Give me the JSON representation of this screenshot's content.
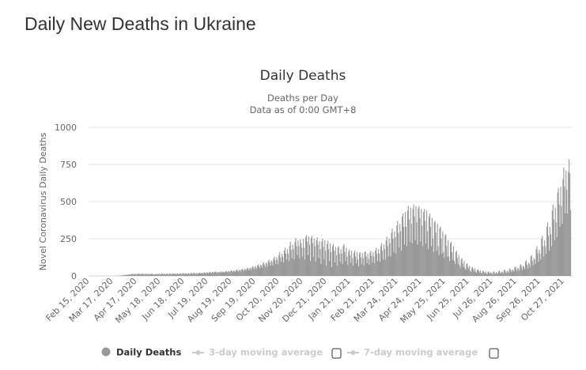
{
  "page": {
    "title": "Daily New Deaths in Ukraine"
  },
  "chart_data": {
    "type": "bar",
    "title": "Daily Deaths",
    "subtitle": [
      "Deaths per Day",
      "Data as of 0:00 GMT+8"
    ],
    "ylabel": "Novel Coronavirus Daily Deaths",
    "xlabel": "",
    "ylim": [
      0,
      1000
    ],
    "yticks": [
      "0",
      "250",
      "500",
      "750",
      "1000"
    ],
    "grid": true,
    "legend_placement": "bottom",
    "color": "#999999",
    "first_date": "2020-02-15",
    "xticks": [
      "Feb 15, 2020",
      "Mar 17, 2020",
      "Apr 17, 2020",
      "May 18, 2020",
      "Jun 18, 2020",
      "Jul 19, 2020",
      "Aug 19, 2020",
      "Sep 19, 2020",
      "Oct 20, 2020",
      "Nov 20, 2020",
      "Dec 21, 2020",
      "Jan 21, 2021",
      "Feb 21, 2021",
      "Mar 24, 2021",
      "Apr 24, 2021",
      "May 25, 2021",
      "Jun 25, 2021",
      "Jul 26, 2021",
      "Aug 26, 2021",
      "Sep 26, 2021",
      "Oct 27, 2021"
    ],
    "legend": [
      {
        "label": "Daily Deaths",
        "active": true,
        "color": "#999999"
      },
      {
        "label": "3-day moving average",
        "active": false,
        "color": "#cccccc"
      },
      {
        "label": "7-day moving average",
        "active": false,
        "color": "#cccccc"
      }
    ],
    "values": [
      0,
      0,
      0,
      0,
      0,
      0,
      0,
      0,
      0,
      0,
      0,
      0,
      0,
      0,
      0,
      0,
      0,
      0,
      0,
      0,
      0,
      0,
      0,
      0,
      0,
      0,
      0,
      0,
      0,
      0,
      0,
      0,
      1,
      0,
      1,
      0,
      1,
      2,
      0,
      3,
      2,
      4,
      3,
      5,
      4,
      6,
      8,
      5,
      7,
      9,
      7,
      10,
      12,
      8,
      11,
      14,
      13,
      10,
      12,
      15,
      11,
      9,
      14,
      12,
      16,
      13,
      10,
      14,
      11,
      17,
      13,
      9,
      12,
      15,
      14,
      10,
      13,
      11,
      14,
      9,
      12,
      16,
      13,
      10,
      8,
      12,
      14,
      11,
      15,
      9,
      13,
      14,
      10,
      12,
      17,
      13,
      11,
      15,
      12,
      9,
      14,
      16,
      12,
      10,
      18,
      15,
      11,
      13,
      17,
      14,
      12,
      16,
      13,
      10,
      15,
      18,
      14,
      11,
      19,
      16,
      12,
      14,
      20,
      17,
      13,
      18,
      15,
      11,
      16,
      19,
      13,
      12,
      21,
      18,
      14,
      17,
      22,
      16,
      13,
      20,
      17,
      12,
      19,
      23,
      18,
      14,
      22,
      20,
      15,
      21,
      25,
      19,
      16,
      24,
      22,
      17,
      24,
      28,
      21,
      18,
      27,
      25,
      19,
      27,
      30,
      24,
      20,
      29,
      26,
      20,
      28,
      31,
      25,
      21,
      30,
      27,
      22,
      30,
      34,
      28,
      23,
      33,
      30,
      24,
      33,
      38,
      31,
      26,
      37,
      34,
      27,
      38,
      42,
      35,
      29,
      41,
      38,
      30,
      43,
      48,
      40,
      33,
      47,
      44,
      35,
      50,
      56,
      46,
      38,
      55,
      52,
      40,
      60,
      66,
      55,
      45,
      65,
      60,
      48,
      70,
      78,
      64,
      52,
      76,
      70,
      55,
      82,
      92,
      75,
      60,
      90,
      82,
      62,
      98,
      110,
      90,
      70,
      105,
      95,
      70,
      115,
      130,
      105,
      80,
      125,
      110,
      80,
      140,
      160,
      125,
      95,
      150,
      130,
      90,
      170,
      190,
      150,
      110,
      180,
      150,
      100,
      200,
      230,
      175,
      120,
      210,
      180,
      110,
      230,
      255,
      200,
      140,
      240,
      200,
      120,
      245,
      220,
      190,
      130,
      250,
      190,
      110,
      260,
      275,
      230,
      140,
      265,
      210,
      100,
      255,
      270,
      220,
      130,
      250,
      200,
      95,
      240,
      260,
      210,
      120,
      235,
      180,
      80,
      230,
      250,
      195,
      110,
      240,
      170,
      70,
      215,
      235,
      180,
      100,
      220,
      160,
      60,
      200,
      215,
      170,
      90,
      195,
      140,
      70,
      190,
      200,
      150,
      95,
      180,
      150,
      80,
      200,
      215,
      160,
      100,
      190,
      130,
      75,
      165,
      180,
      140,
      90,
      170,
      120,
      70,
      155,
      170,
      130,
      85,
      160,
      110,
      65,
      150,
      160,
      125,
      80,
      155,
      120,
      70,
      160,
      165,
      130,
      85,
      150,
      115,
      75,
      155,
      170,
      135,
      90,
      160,
      130,
      85,
      170,
      190,
      150,
      100,
      180,
      150,
      95,
      200,
      220,
      170,
      110,
      210,
      180,
      110,
      240,
      265,
      200,
      130,
      250,
      220,
      130,
      290,
      320,
      250,
      160,
      300,
      260,
      150,
      340,
      370,
      290,
      190,
      350,
      300,
      170,
      400,
      420,
      330,
      210,
      430,
      330,
      200,
      440,
      470,
      380,
      230,
      460,
      350,
      220,
      450,
      480,
      400,
      240,
      470,
      360,
      210,
      455,
      470,
      390,
      230,
      450,
      340,
      200,
      430,
      450,
      370,
      220,
      440,
      300,
      180,
      400,
      420,
      330,
      200,
      390,
      250,
      160,
      360,
      370,
      290,
      170,
      350,
      200,
      140,
      320,
      330,
      250,
      150,
      300,
      160,
      120,
      270,
      280,
      200,
      130,
      240,
      130,
      100,
      220,
      230,
      160,
      110,
      200,
      100,
      80,
      160,
      170,
      120,
      80,
      140,
      70,
      55,
      110,
      120,
      85,
      60,
      100,
      50,
      40,
      80,
      85,
      60,
      45,
      70,
      35,
      28,
      55,
      60,
      45,
      30,
      50,
      28,
      20,
      40,
      45,
      32,
      22,
      38,
      22,
      15,
      32,
      35,
      25,
      18,
      30,
      18,
      12,
      28,
      30,
      20,
      15,
      26,
      17,
      12,
      28,
      30,
      20,
      14,
      26,
      20,
      15,
      32,
      35,
      24,
      17,
      30,
      25,
      18,
      38,
      42,
      30,
      20,
      36,
      30,
      22,
      45,
      50,
      36,
      25,
      45,
      38,
      28,
      58,
      62,
      45,
      32,
      55,
      48,
      35,
      72,
      78,
      58,
      40,
      70,
      60,
      45,
      95,
      105,
      75,
      50,
      90,
      80,
      60,
      130,
      140,
      100,
      70,
      120,
      110,
      80,
      180,
      200,
      150,
      95,
      175,
      150,
      110,
      250,
      270,
      200,
      130,
      240,
      200,
      150,
      330,
      360,
      270,
      170,
      330,
      280,
      200,
      440,
      480,
      380,
      240,
      460,
      360,
      260,
      560,
      590,
      480,
      330,
      600,
      470,
      350,
      650,
      730,
      600,
      420,
      710,
      580,
      420,
      700,
      785,
      690,
      443
    ]
  }
}
